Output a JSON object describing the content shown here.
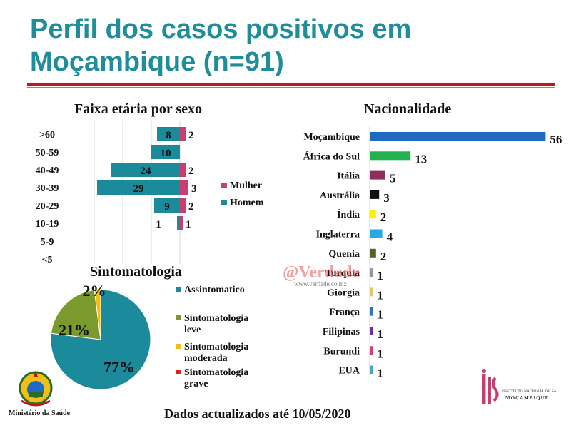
{
  "title": "Perfil dos casos positivos em Moçambique (n=91)",
  "footer": "Dados actualizados até 10/05/2020",
  "ministry": "Ministério da Saúde",
  "watermark": {
    "top": "@Verdade",
    "bottom": "www.verdade.co.mz"
  },
  "ins_logo": {
    "line1": "INSTITUTO NACIONAL DE SAÚDE",
    "line2": "MOÇAMBIQUE"
  },
  "chart_data": [
    {
      "type": "bar",
      "orientation": "horizontal",
      "stacked": true,
      "title": "Faixa etária por sexo",
      "categories": [
        ">60",
        "50-59",
        "40-49",
        "30-39",
        "20-29",
        "10-19",
        "5-9",
        "<5"
      ],
      "series": [
        {
          "name": "Mulher",
          "color": "#c7406d",
          "values": [
            2,
            0,
            2,
            3,
            2,
            1,
            0,
            0
          ]
        },
        {
          "name": "Homem",
          "color": "#1b8a9a",
          "values": [
            8,
            10,
            24,
            29,
            9,
            1,
            0,
            0
          ]
        }
      ],
      "legend": "right"
    },
    {
      "type": "bar",
      "orientation": "horizontal",
      "title": "Nacionalidade",
      "categories": [
        "Moçambique",
        "África do Sul",
        "Itália",
        "Austrália",
        "Índia",
        "Inglaterra",
        "Quenia",
        "Turquia",
        "Giorgia",
        "França",
        "Filipinas",
        "Burundi",
        "EUA"
      ],
      "values": [
        56,
        13,
        5,
        3,
        2,
        4,
        2,
        1,
        1,
        1,
        1,
        1,
        1
      ],
      "colors": [
        "#1f6bc4",
        "#22b14c",
        "#8e2e5a",
        "#111111",
        "#ffee00",
        "#26a8e0",
        "#4f6228",
        "#8e9a9a",
        "#e8c070",
        "#2e75b6",
        "#7030a0",
        "#d04070",
        "#4aa3c8"
      ]
    },
    {
      "type": "pie",
      "title": "Sintomatologia",
      "categories": [
        "Assintomatico",
        "Sintomatologia leve",
        "Sintomatologia moderada",
        "Sintomatologia grave"
      ],
      "values": [
        77,
        21,
        2,
        0
      ],
      "labels": [
        "77%",
        "21%",
        "2%",
        ""
      ],
      "colors": [
        "#1b8a9a",
        "#7a9a2e",
        "#f2c014",
        "#e21d1d"
      ],
      "legend": "right"
    }
  ]
}
